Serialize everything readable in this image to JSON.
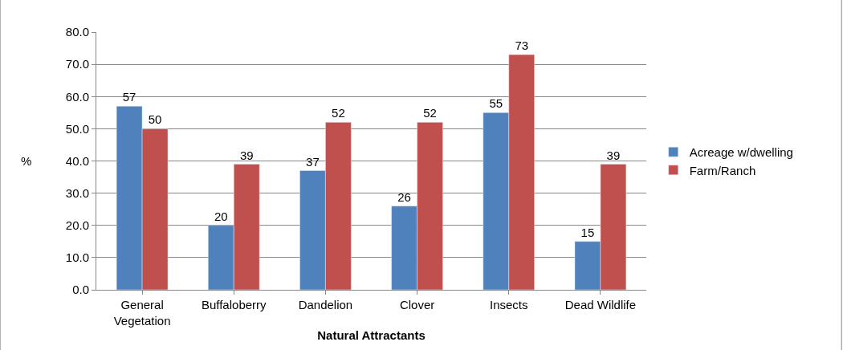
{
  "chart_data": {
    "type": "bar",
    "xlabel": "Natural Attractants",
    "ylabel": "%",
    "categories": [
      "General Vegetation",
      "Buffaloberry",
      "Dandelion",
      "Clover",
      "Insects",
      "Dead Wildlife"
    ],
    "series": [
      {
        "name": "Acreage w/dwelling",
        "color": "#4f81bd",
        "values": [
          57,
          20,
          37,
          26,
          55,
          15
        ]
      },
      {
        "name": "Farm/Ranch",
        "color": "#c0504d",
        "values": [
          50,
          39,
          52,
          52,
          73,
          39
        ]
      }
    ],
    "data_labels": true,
    "ylim": [
      0,
      80
    ],
    "yticks": [
      {
        "value": 0,
        "label": "0.0"
      },
      {
        "value": 10,
        "label": "10.0"
      },
      {
        "value": 20,
        "label": "20.0"
      },
      {
        "value": 30,
        "label": "30.0"
      },
      {
        "value": 40,
        "label": "40.0"
      },
      {
        "value": 50,
        "label": "50.0"
      },
      {
        "value": 60,
        "label": "60.0"
      },
      {
        "value": 70,
        "label": "70.0"
      },
      {
        "value": 80,
        "label": "80.0"
      }
    ],
    "grid": "y",
    "legend": "right"
  }
}
